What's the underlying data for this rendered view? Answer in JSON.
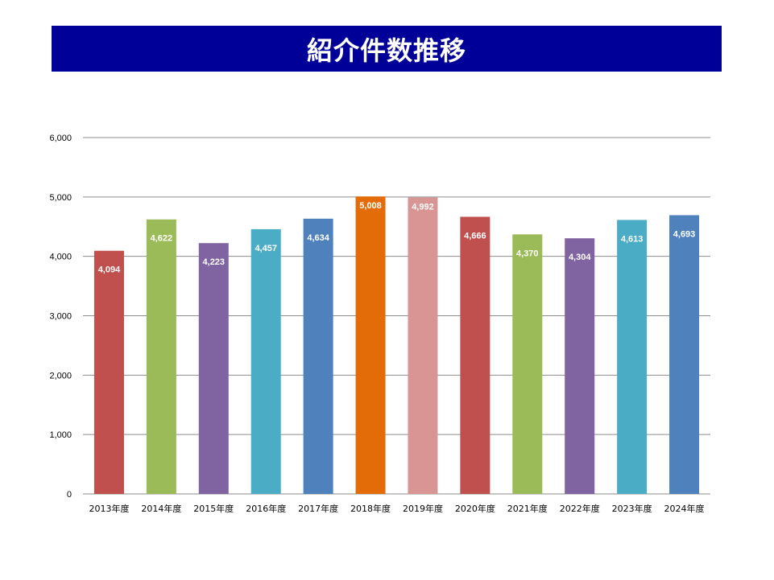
{
  "chart_data": {
    "type": "bar",
    "title": "紹介件数推移",
    "xlabel": "",
    "ylabel": "",
    "ylim": [
      0,
      6000
    ],
    "yticks": [
      0,
      1000,
      2000,
      3000,
      4000,
      5000,
      6000
    ],
    "ytick_labels": [
      "0",
      "1,000",
      "2,000",
      "3,000",
      "4,000",
      "5,000",
      "6,000"
    ],
    "grid": true,
    "legend": "none",
    "categories": [
      "2013年度",
      "2014年度",
      "2015年度",
      "2016年度",
      "2017年度",
      "2018年度",
      "2019年度",
      "2020年度",
      "2021年度",
      "2022年度",
      "2023年度",
      "2024年度"
    ],
    "values": [
      4094,
      4622,
      4223,
      4457,
      4634,
      5008,
      4992,
      4666,
      4370,
      4304,
      4613,
      4693
    ],
    "data_labels": [
      "4,094",
      "4,622",
      "4,223",
      "4,457",
      "4,634",
      "5,008",
      "4,992",
      "4,666",
      "4,370",
      "4,304",
      "4,613",
      "4,693"
    ],
    "colors": [
      "#c0504d",
      "#9bbb59",
      "#8064a2",
      "#4bacc6",
      "#4f81bd",
      "#e36c09",
      "#d99594",
      "#c0504d",
      "#9bbb59",
      "#8064a2",
      "#4bacc6",
      "#4f81bd"
    ]
  }
}
